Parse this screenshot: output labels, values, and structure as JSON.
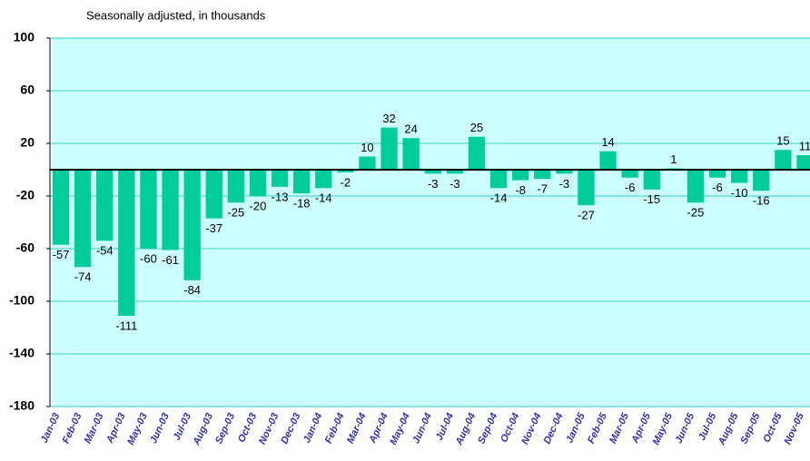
{
  "chart_data": {
    "type": "bar",
    "subtitle": "Seasonally adjusted, in thousands",
    "categories": [
      "Jan-03",
      "Feb-03",
      "Mar-03",
      "Apr-03",
      "May-03",
      "Jun-03",
      "Jul-03",
      "Aug-03",
      "Sep-03",
      "Oct-03",
      "Nov-03",
      "Dec-03",
      "Jan-04",
      "Feb-04",
      "Mar-04",
      "Apr-04",
      "May-04",
      "Jun-04",
      "Jul-04",
      "Aug-04",
      "Sep-04",
      "Oct-04",
      "Nov-04",
      "Dec-04",
      "Jan-05",
      "Feb-05",
      "Mar-05",
      "Apr-05",
      "May-05",
      "Jun-05",
      "Jul-05",
      "Aug-05",
      "Sep-05",
      "Oct-05",
      "Nov-05"
    ],
    "values": [
      -57,
      -74,
      -54,
      -111,
      -60,
      -61,
      -84,
      -37,
      -25,
      -20,
      -13,
      -18,
      -14,
      -2,
      10,
      32,
      24,
      -3,
      -3,
      25,
      -14,
      -8,
      -7,
      -3,
      -27,
      14,
      -6,
      -15,
      1,
      -25,
      -6,
      -10,
      -16,
      15,
      11
    ],
    "color": "#00cc99",
    "ylim": [
      -180,
      100
    ],
    "yticks": [
      100,
      60,
      20,
      -20,
      -60,
      -100,
      -140,
      -180
    ],
    "grid": true
  }
}
